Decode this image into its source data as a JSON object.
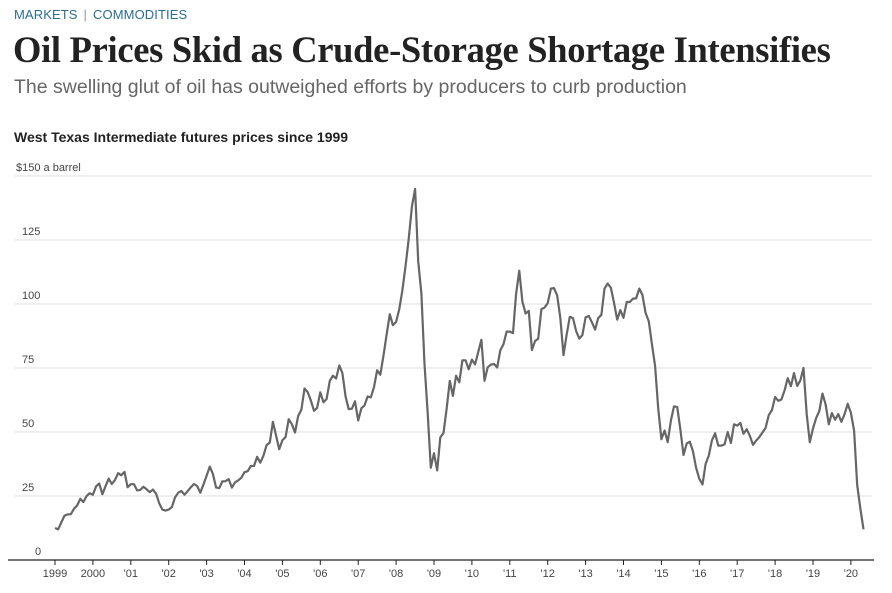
{
  "header": {
    "section": "MARKETS",
    "subsection": "COMMODITIES",
    "title": "Oil Prices Skid as Crude-Storage Shortage Intensifies",
    "subtitle": "The swelling glut of oil has outweighed efforts by producers to curb production"
  },
  "chart_data": {
    "type": "line",
    "title": "West Texas Intermediate futures prices since 1999",
    "ylabel": "$150 a barrel",
    "ylim": [
      0,
      150
    ],
    "y_ticks": [
      "$150 a barrel",
      "125",
      "100",
      "75",
      "50",
      "25",
      "0"
    ],
    "y_tick_values": [
      150,
      125,
      100,
      75,
      50,
      25,
      0
    ],
    "x_ticks": [
      "1999",
      "2000",
      "'01",
      "'02",
      "'03",
      "'04",
      "'05",
      "'06",
      "'07",
      "'08",
      "'09",
      "'10",
      "'11",
      "'12",
      "'13",
      "'14",
      "'15",
      "'16",
      "'17",
      "'18",
      "'19",
      "'20"
    ],
    "x_tick_years": [
      1999,
      2000,
      2001,
      2002,
      2003,
      2004,
      2005,
      2006,
      2007,
      2008,
      2009,
      2010,
      2011,
      2012,
      2013,
      2014,
      2015,
      2016,
      2017,
      2018,
      2019,
      2020
    ],
    "grid": true,
    "line_color": "#666666",
    "series": [
      {
        "monthly_by_year": {
          "1999": [
            12.5,
            12,
            14.7,
            17.3,
            17.8,
            17.9,
            20,
            21.3,
            23.9,
            22.6,
            25,
            26.1
          ],
          "2000": [
            25.5,
            28.8,
            29.9,
            25.7,
            28.8,
            31.8,
            29.7,
            31.3,
            33.9,
            33.1,
            34.4,
            28.4
          ],
          "2001": [
            29.6,
            29.6,
            27.2,
            27.4,
            28.6,
            27.6,
            26.5,
            27.5,
            25.9,
            22.2,
            19.7,
            19.3
          ],
          "2002": [
            19.7,
            20.7,
            24.4,
            26.3,
            27,
            25.5,
            26.9,
            28.4,
            29.7,
            28.9,
            26.3,
            29.4
          ],
          "2003": [
            32.9,
            36.5,
            33.6,
            28.3,
            28.1,
            30.7,
            30.8,
            31.6,
            28.3,
            30.3,
            31.1,
            32.1
          ],
          "2004": [
            34.3,
            34.7,
            36.7,
            36.7,
            40.3,
            38,
            40.7,
            44.9,
            45.9,
            54,
            48.5,
            43.3
          ],
          "2005": [
            46.8,
            48,
            55,
            53,
            49.8,
            56.3,
            58.7,
            67,
            65.6,
            62.4,
            58.3,
            59.4
          ],
          "2006": [
            65.5,
            61.6,
            62.9,
            70,
            72,
            70.9,
            76,
            73,
            63.8,
            58.9,
            59.1,
            62
          ],
          "2007": [
            54.5,
            59.3,
            60.4,
            63.9,
            63.5,
            67.5,
            74.1,
            72.4,
            79.9,
            88,
            96,
            91.7
          ],
          "2008": [
            93,
            98,
            105.4,
            115,
            125.4,
            138,
            145,
            116.7,
            104.1,
            76.6,
            57.3,
            36
          ],
          "2009": [
            41.7,
            35,
            47.9,
            49.6,
            59,
            70,
            64.1,
            72,
            69.4,
            78,
            78,
            74.5
          ],
          "2010": [
            78.3,
            76.4,
            81.2,
            86,
            70,
            75.3,
            76.3,
            76.6,
            75.2,
            81.9,
            84.3,
            89.2
          ],
          "2011": [
            89.2,
            88.6,
            104,
            113,
            100.9,
            96.3,
            97.3,
            82,
            85.6,
            86.4,
            98,
            98.6
          ],
          "2012": [
            100.3,
            106,
            106.2,
            103.3,
            94.7,
            80,
            87.9,
            95,
            94.5,
            89.5,
            86.5,
            87.9
          ],
          "2013": [
            94.8,
            95.3,
            92.9,
            90,
            94.5,
            95.8,
            106,
            108,
            106.3,
            100.5,
            93.9,
            97.6
          ],
          "2014": [
            94.6,
            100.8,
            100.8,
            102.1,
            102.2,
            106,
            103.6,
            96.5,
            93.2,
            84.4,
            75.8,
            59.3
          ],
          "2015": [
            47.2,
            50.6,
            46,
            54.5,
            60,
            59.8,
            50.9,
            41,
            45.5,
            46.2,
            42.4,
            36
          ],
          "2016": [
            31.7,
            29.5,
            37.5,
            40.8,
            46.7,
            49.5,
            44.7,
            44.7,
            45.2,
            50,
            45.7,
            53
          ],
          "2017": [
            52.5,
            53.5,
            49.3,
            51.1,
            48.5,
            45,
            46.6,
            48,
            49.8,
            51.6,
            56.6,
            58.5
          ],
          "2018": [
            63.7,
            62.2,
            62.7,
            66.3,
            71,
            67.9,
            73,
            68,
            70.2,
            75,
            57,
            46
          ],
          "2019": [
            51.4,
            55.5,
            58.2,
            65,
            60.8,
            53,
            57.4,
            54.8,
            57,
            54,
            57,
            61
          ],
          "2020": [
            57.5,
            50.5,
            29.2,
            20,
            12
          ]
        }
      }
    ]
  }
}
